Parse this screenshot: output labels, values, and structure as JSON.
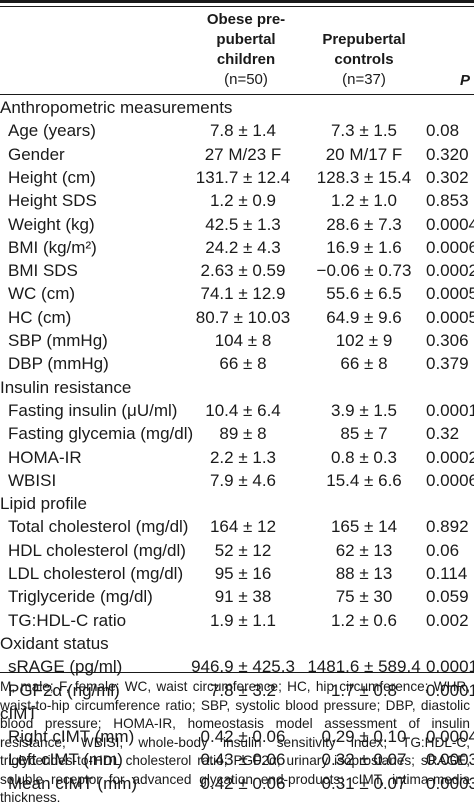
{
  "header": {
    "col1_title": "Obese pre-pubertal children",
    "col1_n": "(n=50)",
    "col2_title": "Prepubertal controls",
    "col2_n": "(n=37)",
    "col3_title": "P"
  },
  "rows": [
    {
      "type": "section",
      "label": "Anthropometric measurements"
    },
    {
      "label": "Age (years)",
      "obese": "7.8 ± 1.4",
      "controls": "7.3 ± 1.5",
      "p": "0.08"
    },
    {
      "label": "Gender",
      "obese": "27 M/23 F",
      "controls": "20 M/17 F",
      "p": "0.320"
    },
    {
      "label": "Height (cm)",
      "obese": "131.7 ± 12.4",
      "controls": "128.3 ± 15.4",
      "p": "0.302"
    },
    {
      "label": "Height SDS",
      "obese": "1.2 ± 0.9",
      "controls": "1.2 ± 1.0",
      "p": "0.853"
    },
    {
      "label": "Weight (kg)",
      "obese": "42.5 ± 1.3",
      "controls": "28.6 ± 7.3",
      "p": "0.0004"
    },
    {
      "label": "BMI (kg/m²)",
      "obese": "24.2 ± 4.3",
      "controls": "16.9 ± 1.6",
      "p": "0.0006"
    },
    {
      "label": "BMI SDS",
      "obese": "2.63 ± 0.59",
      "controls": "−0.06 ± 0.73",
      "p": "0.0002"
    },
    {
      "label": "WC (cm)",
      "obese": "74.1 ± 12.9",
      "controls": "55.6 ± 6.5",
      "p": "0.0005"
    },
    {
      "label": "HC (cm)",
      "obese": "80.7 ± 10.03",
      "controls": "64.9 ± 9.6",
      "p": "0.0005"
    },
    {
      "label": "SBP (mmHg)",
      "obese": "104 ± 8",
      "controls": "102 ± 9",
      "p": "0.306"
    },
    {
      "label": "DBP (mmHg)",
      "obese": "66 ± 8",
      "controls": "66 ± 8",
      "p": "0.379"
    },
    {
      "type": "section",
      "label": "Insulin resistance"
    },
    {
      "label": "Fasting insulin (μU/ml)",
      "obese": "10.4 ± 6.4",
      "controls": "3.9 ± 1.5",
      "p": "0.0001"
    },
    {
      "label": "Fasting glycemia (mg/dl)",
      "obese": "89 ± 8",
      "controls": "85 ± 7",
      "p": "0.32"
    },
    {
      "label": "HOMA-IR",
      "obese": "2.2 ± 1.3",
      "controls": "0.8 ± 0.3",
      "p": "0.0002"
    },
    {
      "label": "WBISI",
      "obese": "7.9 ± 4.6",
      "controls": "15.4 ± 6.6",
      "p": "0.0006"
    },
    {
      "type": "section",
      "label": "Lipid profile"
    },
    {
      "label": "Total cholesterol (mg/dl)",
      "obese": "164 ± 12",
      "controls": "165 ± 14",
      "p": "0.892"
    },
    {
      "label": "HDL cholesterol (mg/dl)",
      "obese": "52 ± 12",
      "controls": "62 ± 13",
      "p": "0.06"
    },
    {
      "label": "LDL cholesterol (mg/dl)",
      "obese": "95 ± 16",
      "controls": "88 ± 13",
      "p": "0.114"
    },
    {
      "label": "Triglyceride (mg/dl)",
      "obese": "91 ± 38",
      "controls": "75 ± 30",
      "p": "0.059"
    },
    {
      "label": "TG:HDL-C ratio",
      "obese": "1.9 ± 1.1",
      "controls": "1.2 ± 0.6",
      "p": "0.002"
    },
    {
      "type": "section",
      "label": "Oxidant status"
    },
    {
      "label": "sRAGE (pg/ml)",
      "obese": "946.9 ± 425.3",
      "controls": "1481.6 ± 589.4",
      "p": "0.0001"
    },
    {
      "label": "PGF2α (ng/ml)",
      "obese": "7.8 ± 3.2",
      "controls": "1.7 ± 0.8",
      "p": "0.0001"
    },
    {
      "type": "section",
      "label": "cIMT"
    },
    {
      "label": "Right cIMT (mm)",
      "obese": "0.42 ± 0.06",
      "controls": "0.29 ± 0.10",
      "p": "0.0004"
    },
    {
      "label": "Left cIMT (mm)",
      "obese": "0.43 ± 0.06",
      "controls": "0.32 ± 0.07",
      "p": "0.0003"
    },
    {
      "label": "Mean cIMT (mm)",
      "obese": "0.42 ± 0.06",
      "controls": "0.31 ± 0.07",
      "p": "0.0003"
    }
  ],
  "footnote": "M, male; F, female; WC, waist circumference; HC, hip circumference; WHR, waist-to-hip circumference ratio; SBP, systolic blood pressure; DBP, diastolic blood pressure; HOMA-IR, homeostasis model assessment of insulin resistance; WBISI, whole-body insulin sensitivity index; TG:HDL-C, triglycerides-to-HDL cholesterol ratio; PGF2α, urinary isoprostanes; sRAGE, soluble receptor for advanced glycation end-products; cIMT, intima-media thickness."
}
